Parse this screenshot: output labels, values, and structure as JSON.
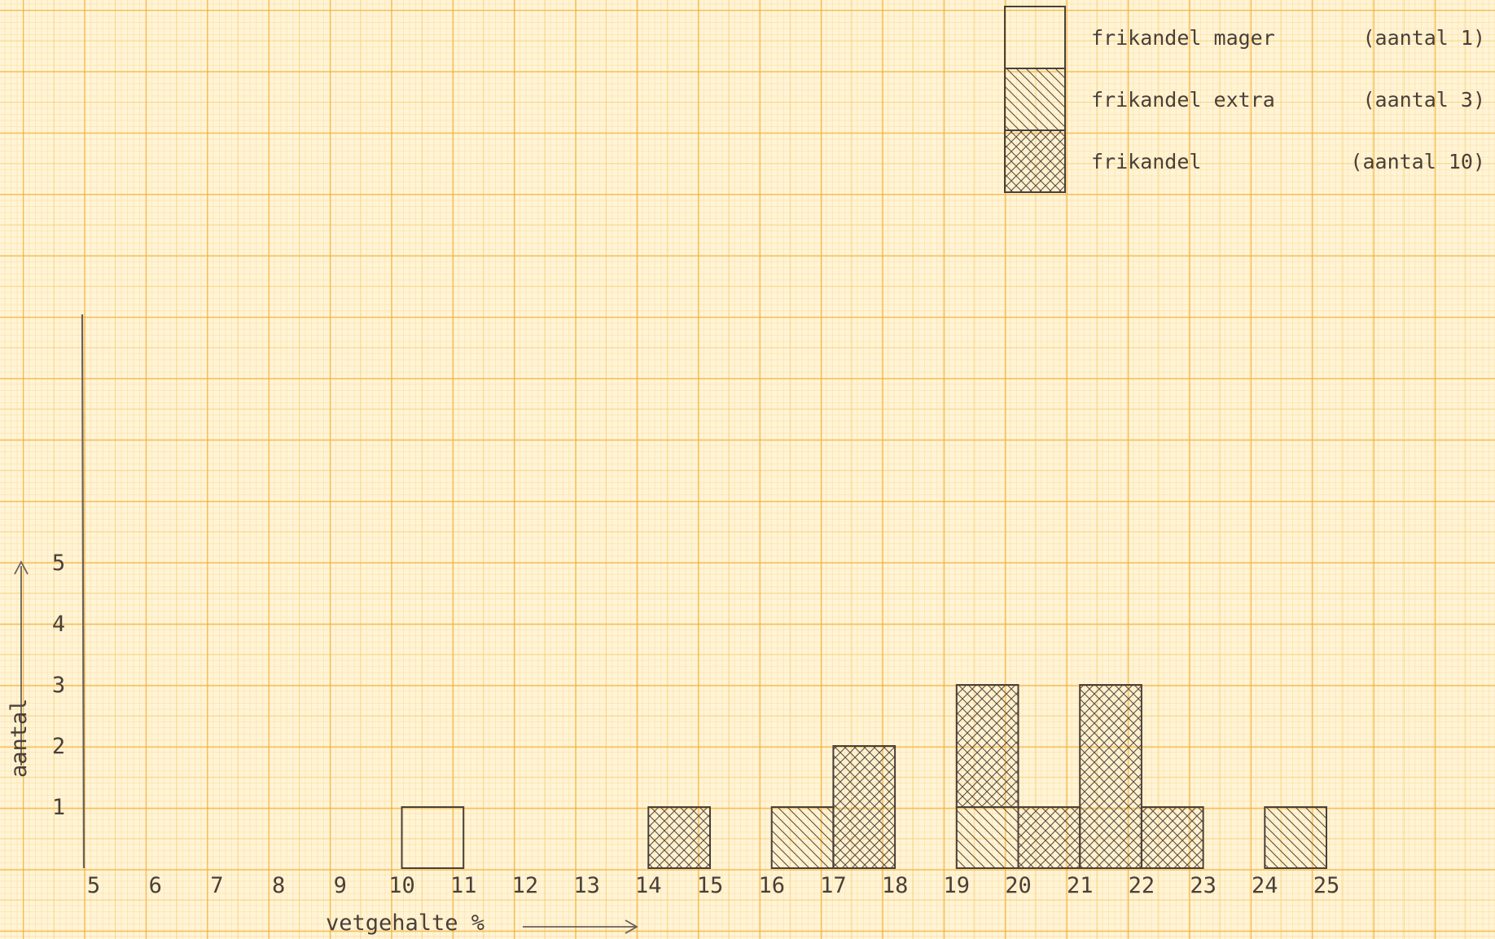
{
  "chart_data": {
    "type": "bar",
    "stacked": true,
    "x": [
      5,
      6,
      7,
      8,
      9,
      10,
      11,
      12,
      13,
      14,
      15,
      16,
      17,
      18,
      19,
      20,
      21,
      22,
      23,
      24,
      25
    ],
    "xlabel": "vetgehalte %",
    "ylabel": "aantal",
    "yticks": [
      1,
      2,
      3,
      4,
      5
    ],
    "series": [
      {
        "name": "frikandel mager",
        "count_label": "(aantal 1)",
        "pattern": "open",
        "bins": [
          {
            "from": 10,
            "to": 11,
            "value": 1
          }
        ]
      },
      {
        "name": "frikandel extra",
        "count_label": "(aantal 3)",
        "pattern": "single-hatch",
        "bins": [
          {
            "from": 16,
            "to": 17,
            "value": 1
          },
          {
            "from": 19,
            "to": 20,
            "value": 1
          },
          {
            "from": 24,
            "to": 25,
            "value": 1
          }
        ]
      },
      {
        "name": "frikandel",
        "count_label": "(aantal 10)",
        "pattern": "cross-hatch",
        "bins": [
          {
            "from": 14,
            "to": 15,
            "value": 1
          },
          {
            "from": 17,
            "to": 18,
            "value": 2
          },
          {
            "from": 19,
            "to": 20,
            "value": 2
          },
          {
            "from": 20,
            "to": 21,
            "value": 1
          },
          {
            "from": 21,
            "to": 22,
            "value": 3
          },
          {
            "from": 22,
            "to": 23,
            "value": 1
          }
        ]
      }
    ],
    "legend_position": "top-right",
    "colors": {
      "ink": "#4a3f38",
      "paper": "#fff4d6",
      "grid": "#f1a628"
    }
  }
}
